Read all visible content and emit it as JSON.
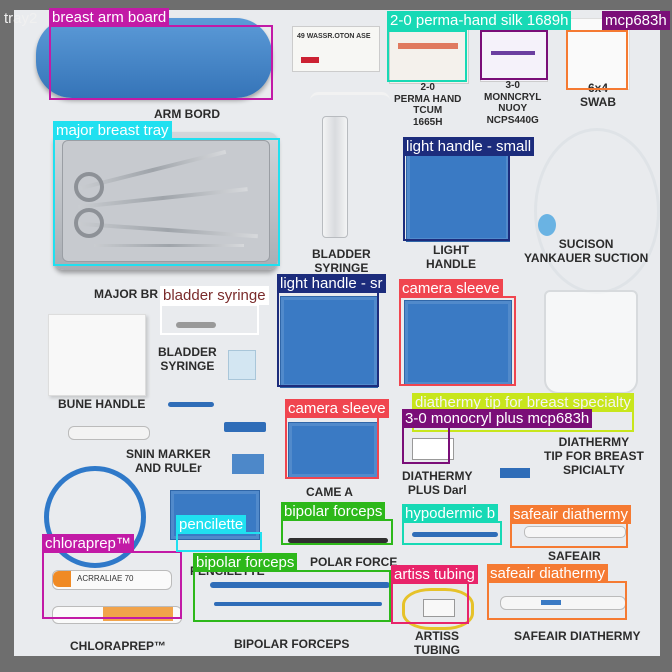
{
  "corner_label": "tray2",
  "colors": {
    "frame": "#6e6e6e",
    "background": "#e9ebee",
    "surgical_blue": "#3a7ac4"
  },
  "annotations": [
    {
      "label": "breast arm board",
      "color": "#c21aa6"
    },
    {
      "label": "2-0 perma-hand silk 1689h",
      "color": "#17d9b5"
    },
    {
      "label": "mcp683h",
      "color": "#7a0e78"
    },
    {
      "label": "major breast tray",
      "color": "#20e0f0"
    },
    {
      "label": "light handle - small",
      "color": "#1c2c7c"
    },
    {
      "label": "bladder syringe",
      "color": "#ffffff"
    },
    {
      "label": "light handle - sr",
      "color": "#1c2c7c"
    },
    {
      "label": "camera sleeve",
      "color": "#f0454f"
    },
    {
      "label": "diathermy tip for breast specialty",
      "color": "#c8e61c"
    },
    {
      "label": "camera sleeve",
      "color": "#f0454f"
    },
    {
      "label": "3-0 monocryl plus mcp683h",
      "color": "#7a0e78"
    },
    {
      "label": "bipolar forceps",
      "color": "#2db81a"
    },
    {
      "label": "hypodermic b",
      "color": "#17d9b5"
    },
    {
      "label": "safeair diathermy",
      "color": "#f57a32"
    },
    {
      "label": "chloraprep™",
      "color": "#c21aa6"
    },
    {
      "label": "pencilette",
      "color": "#20e0f0"
    },
    {
      "label": "bipolar forceps",
      "color": "#2db81a"
    },
    {
      "label": "artiss tubing",
      "color": "#e8246a"
    },
    {
      "label": "safeair diathermy",
      "color": "#f57a32"
    }
  ],
  "printed_labels": {
    "suture_packet": "49 WASSR.OTON ASE",
    "perma_hand": "2-0\nPERMA HAND\nTCUM\n1665H",
    "monocryl": "3-0\nMONNCRYL\nNUOY\nNCPS440G",
    "swab": "6x4\nSWAB",
    "arm_board": "ARM BORD",
    "bladder_syringe_top": "BLADDER\nSYRINGE",
    "light_handle": "LIGHT\nHANDLE",
    "suction": "SUCISON\nYANKAUER SUCTION",
    "major_tray": "MAJOR BR",
    "bladder_syringe": "BLADDER\nSYRINGE",
    "bune_handle": "BUNE HANDLE",
    "skin_marker": "SNIN MARKER\nAND RULEr",
    "diathermy_tip": "DIATHERMY\nTIP FOR BREAST\nSPICIALTY",
    "diathermy_plus": "DIATHERMY\nPLUS Darl",
    "camera": "CAME A",
    "pencilette": "PENCILETTE",
    "bipolar_top": "POLAR FORCE",
    "safeair_top": "SAFEAIR",
    "chloraprep": "CHLORAPREP™",
    "bipolar": "BIPOLAR FORCEPS",
    "artiss": "ARTISS\nTUBING",
    "safeair": "SAFEAIR DIATHERMY",
    "chloraprep_tube": "ACRRALIAE 70"
  }
}
